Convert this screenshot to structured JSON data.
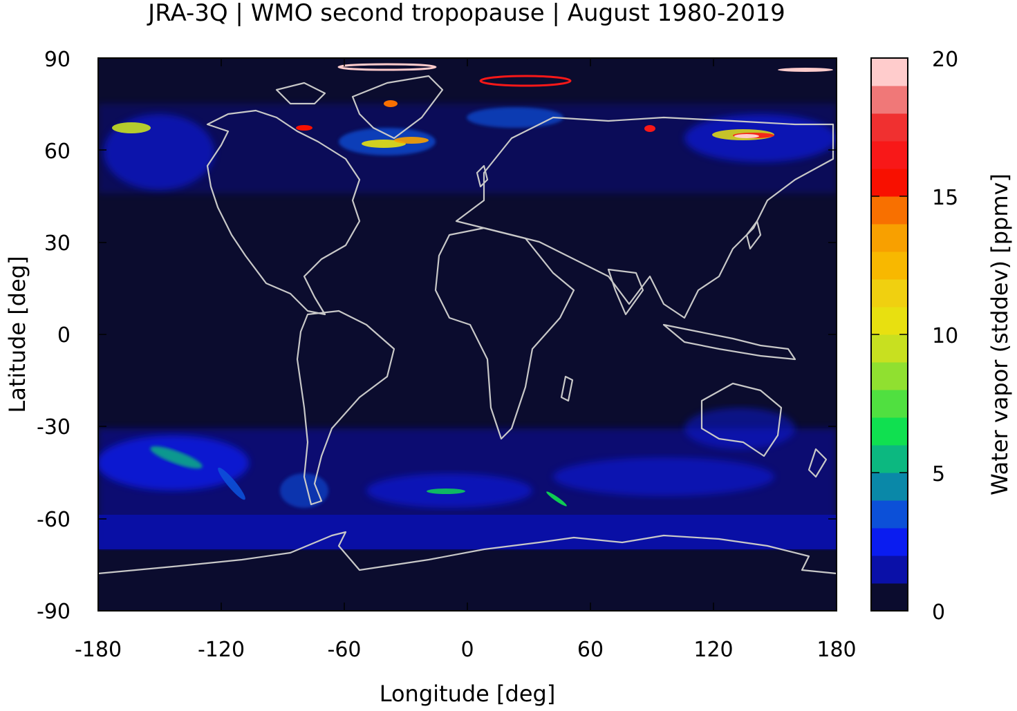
{
  "title": "JRA-3Q | WMO second tropopause | August 1980-2019",
  "map": {
    "background_color": "#0b0c2e",
    "coastline_color": "#c8c8c8",
    "x_axis": {
      "label": "Longitude [deg]",
      "range": [
        -180,
        180
      ],
      "ticks": [
        "-180",
        "-120",
        "-60",
        "0",
        "60",
        "120",
        "180"
      ]
    },
    "y_axis": {
      "label": "Latitude [deg]",
      "range": [
        -90,
        90
      ],
      "ticks": [
        "90",
        "60",
        "30",
        "0",
        "-30",
        "-60",
        "-90"
      ]
    }
  },
  "colorbar": {
    "label": "Water vapor (stddev) [ppmv]",
    "range": [
      0,
      20
    ],
    "ticks": [
      "20",
      "15",
      "10",
      "5",
      "0"
    ],
    "bins": [
      {
        "from": 0,
        "to": 1,
        "color": "#0b0c2e"
      },
      {
        "from": 1,
        "to": 2,
        "color": "#0a10a8"
      },
      {
        "from": 2,
        "to": 3,
        "color": "#0a1cf0"
      },
      {
        "from": 3,
        "to": 4,
        "color": "#0c50d8"
      },
      {
        "from": 4,
        "to": 5,
        "color": "#0a88a8"
      },
      {
        "from": 5,
        "to": 6,
        "color": "#0cb880"
      },
      {
        "from": 6,
        "to": 7,
        "color": "#10e050"
      },
      {
        "from": 7,
        "to": 8,
        "color": "#50e040"
      },
      {
        "from": 8,
        "to": 9,
        "color": "#90e030"
      },
      {
        "from": 9,
        "to": 10,
        "color": "#c8e020"
      },
      {
        "from": 10,
        "to": 11,
        "color": "#e8e010"
      },
      {
        "from": 11,
        "to": 12,
        "color": "#f0d010"
      },
      {
        "from": 12,
        "to": 13,
        "color": "#f8b800"
      },
      {
        "from": 13,
        "to": 14,
        "color": "#f8a000"
      },
      {
        "from": 14,
        "to": 15,
        "color": "#f87000"
      },
      {
        "from": 15,
        "to": 16,
        "color": "#f81000"
      },
      {
        "from": 16,
        "to": 17,
        "color": "#f81818"
      },
      {
        "from": 17,
        "to": 18,
        "color": "#f03030"
      },
      {
        "from": 18,
        "to": 19,
        "color": "#f07878"
      },
      {
        "from": 19,
        "to": 20,
        "color": "#ffcccc"
      }
    ]
  }
}
